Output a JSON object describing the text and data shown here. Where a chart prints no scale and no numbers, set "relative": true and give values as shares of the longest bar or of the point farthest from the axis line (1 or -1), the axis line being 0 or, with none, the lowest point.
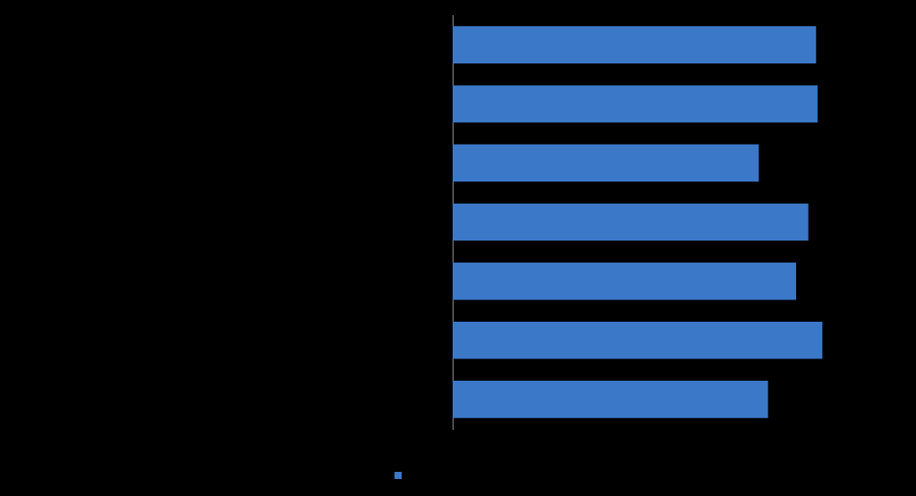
{
  "chart_data": {
    "type": "bar",
    "orientation": "horizontal",
    "relative": true,
    "categories": [
      null,
      null,
      null,
      null,
      null,
      null,
      null
    ],
    "series": [
      {
        "color": "#3c78c8",
        "values": [
          0.983,
          0.987,
          0.828,
          0.962,
          0.929,
          1,
          0.853
        ]
      }
    ]
  }
}
